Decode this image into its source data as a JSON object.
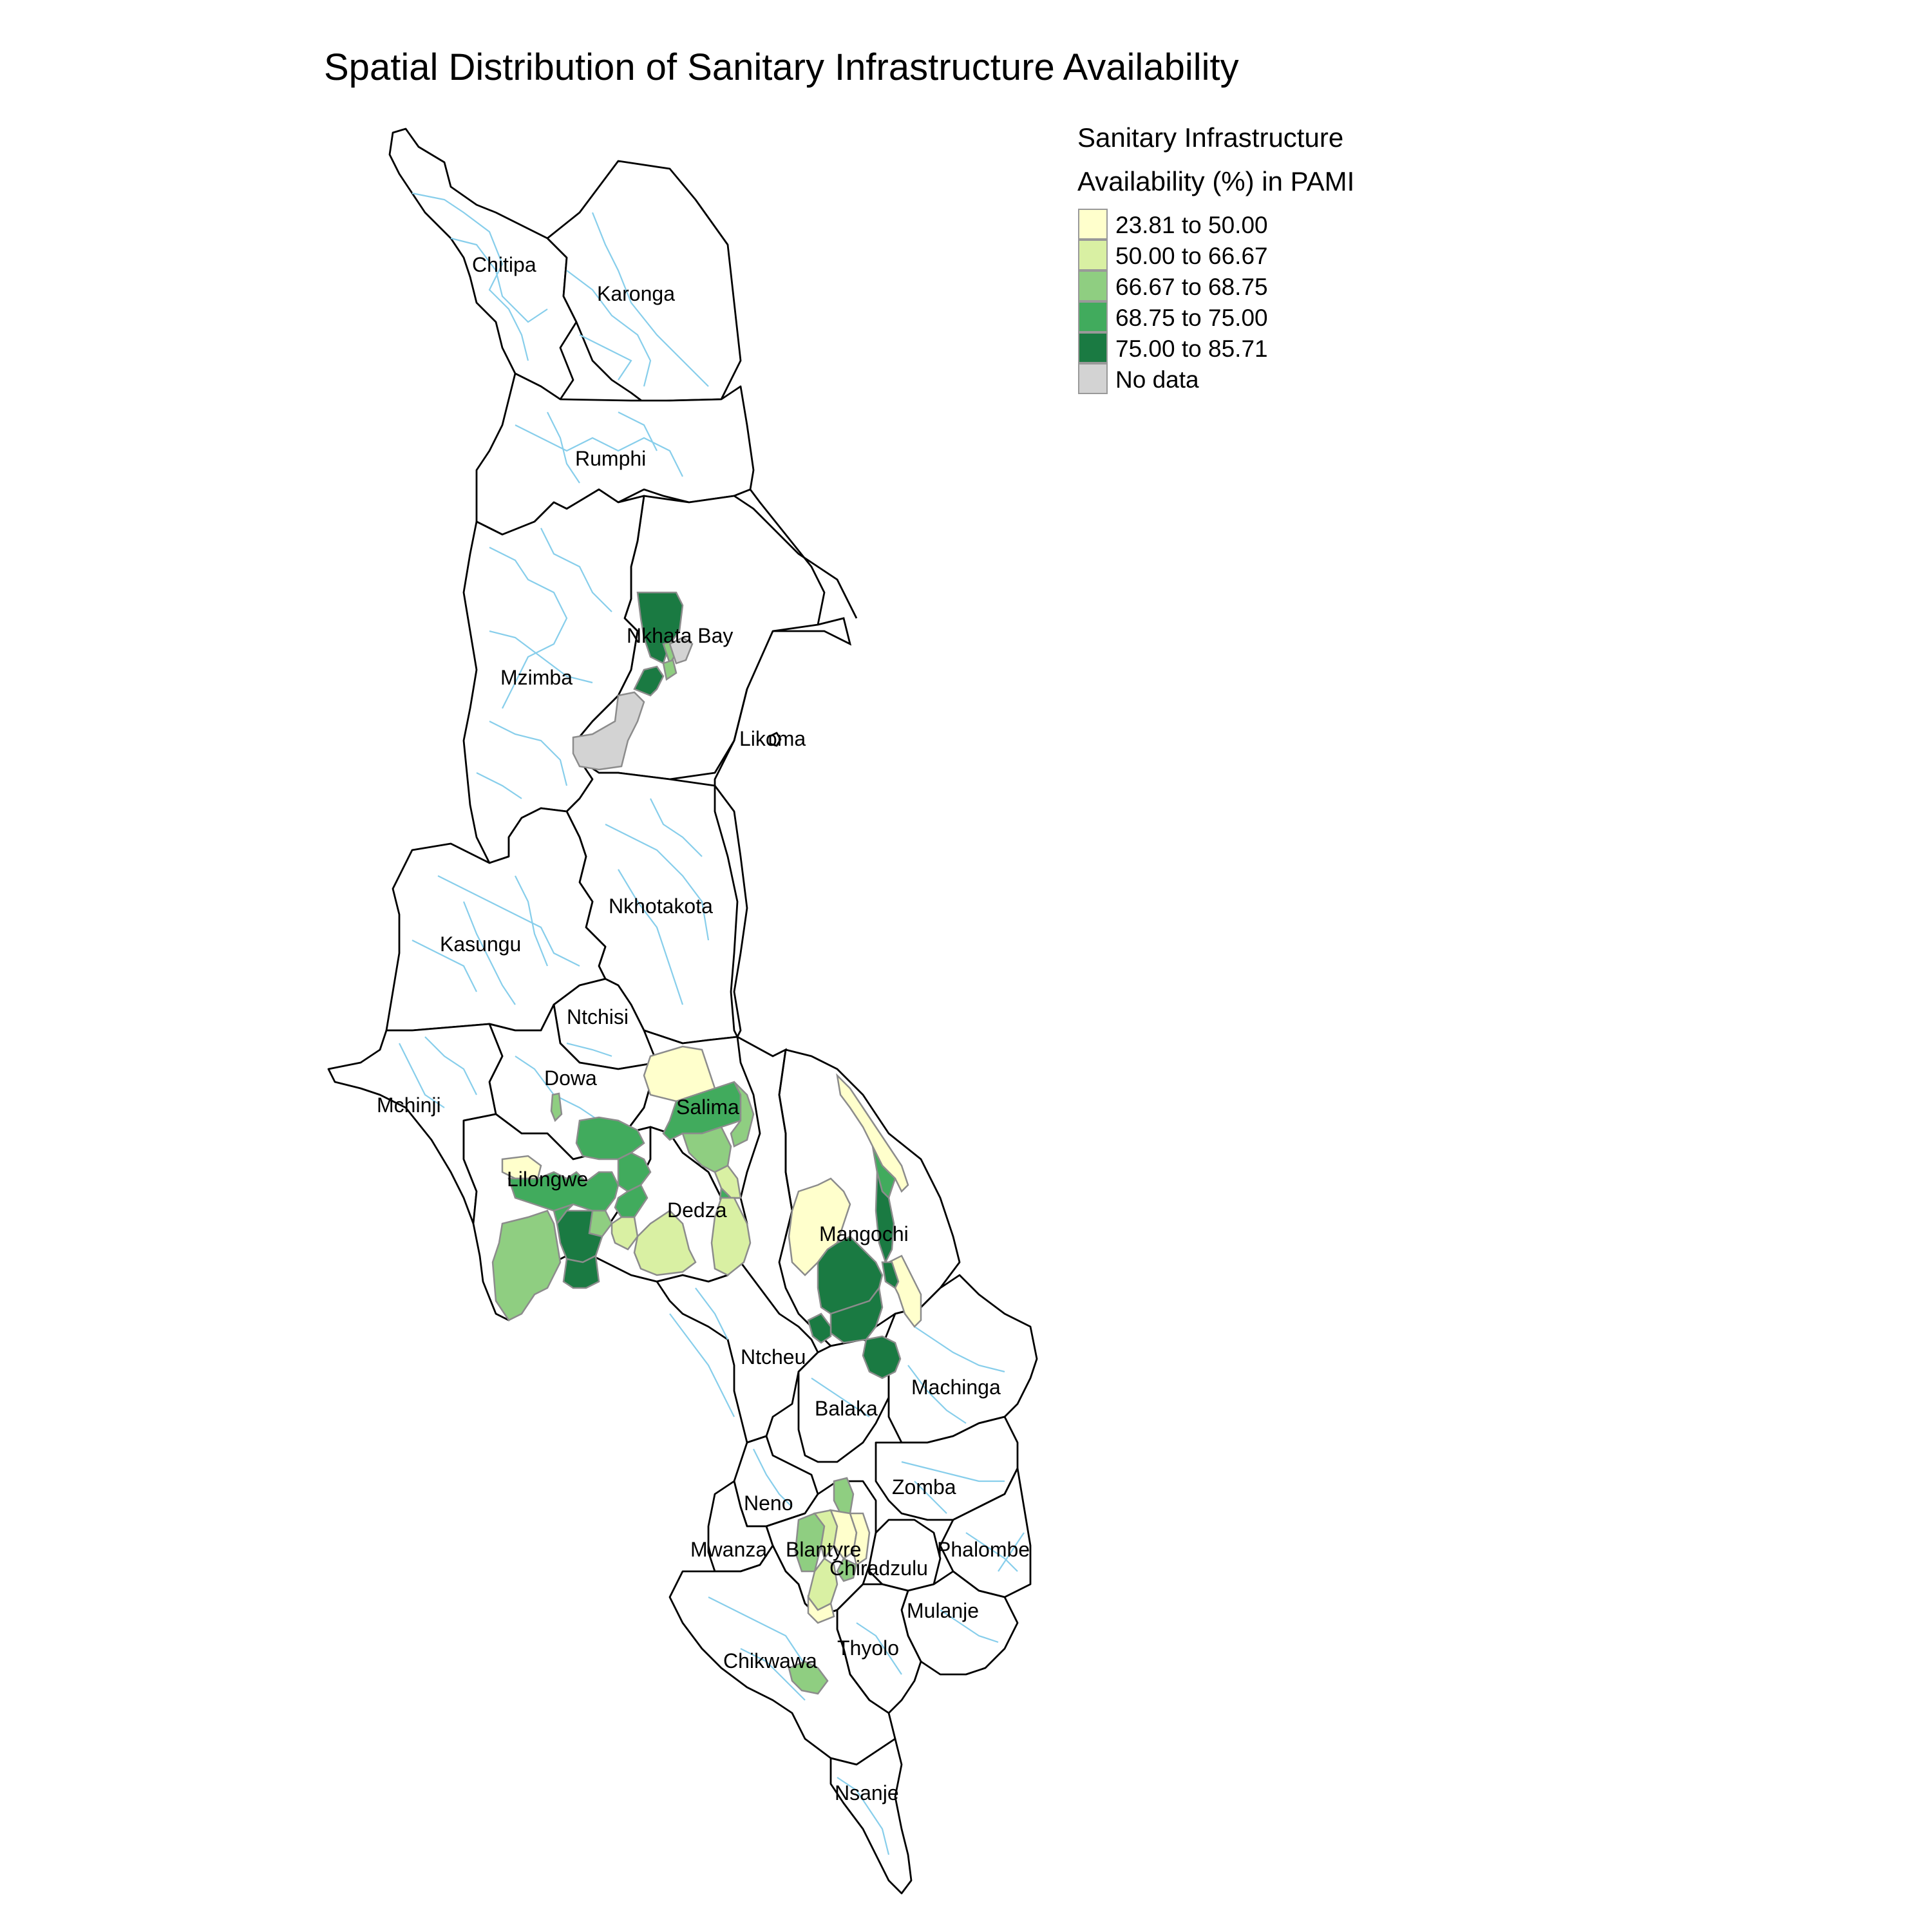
{
  "title": "Spatial Distribution of Sanitary Infrastructure Availability",
  "legend": {
    "title_line1": "Sanitary Infrastructure",
    "title_line2": "Availability (%) in PAMI",
    "items": [
      {
        "label": "23.81 to 50.00",
        "color": "#ffffcc"
      },
      {
        "label": "50.00 to 66.67",
        "color": "#d9f0a3"
      },
      {
        "label": "66.67 to 68.75",
        "color": "#8fce81"
      },
      {
        "label": "68.75 to 75.00",
        "color": "#41ab5d"
      },
      {
        "label": "75.00 to 85.71",
        "color": "#1a7a42"
      },
      {
        "label": "No data",
        "color": "#d3d3d3"
      }
    ]
  },
  "districts": [
    {
      "name": "Chitipa"
    },
    {
      "name": "Karonga"
    },
    {
      "name": "Rumphi"
    },
    {
      "name": "Nkhata Bay"
    },
    {
      "name": "Mzimba"
    },
    {
      "name": "Likoma"
    },
    {
      "name": "Nkhotakota"
    },
    {
      "name": "Kasungu"
    },
    {
      "name": "Ntchisi"
    },
    {
      "name": "Dowa"
    },
    {
      "name": "Mchinji"
    },
    {
      "name": "Salima"
    },
    {
      "name": "Lilongwe"
    },
    {
      "name": "Dedza"
    },
    {
      "name": "Mangochi"
    },
    {
      "name": "Ntcheu"
    },
    {
      "name": "Machinga"
    },
    {
      "name": "Balaka"
    },
    {
      "name": "Zomba"
    },
    {
      "name": "Neno"
    },
    {
      "name": "Mwanza"
    },
    {
      "name": "Blantyre"
    },
    {
      "name": "Phalombe"
    },
    {
      "name": "Chiradzulu"
    },
    {
      "name": "Mulanje"
    },
    {
      "name": "Thyolo"
    },
    {
      "name": "Chikwawa"
    },
    {
      "name": "Nsanje"
    }
  ]
}
